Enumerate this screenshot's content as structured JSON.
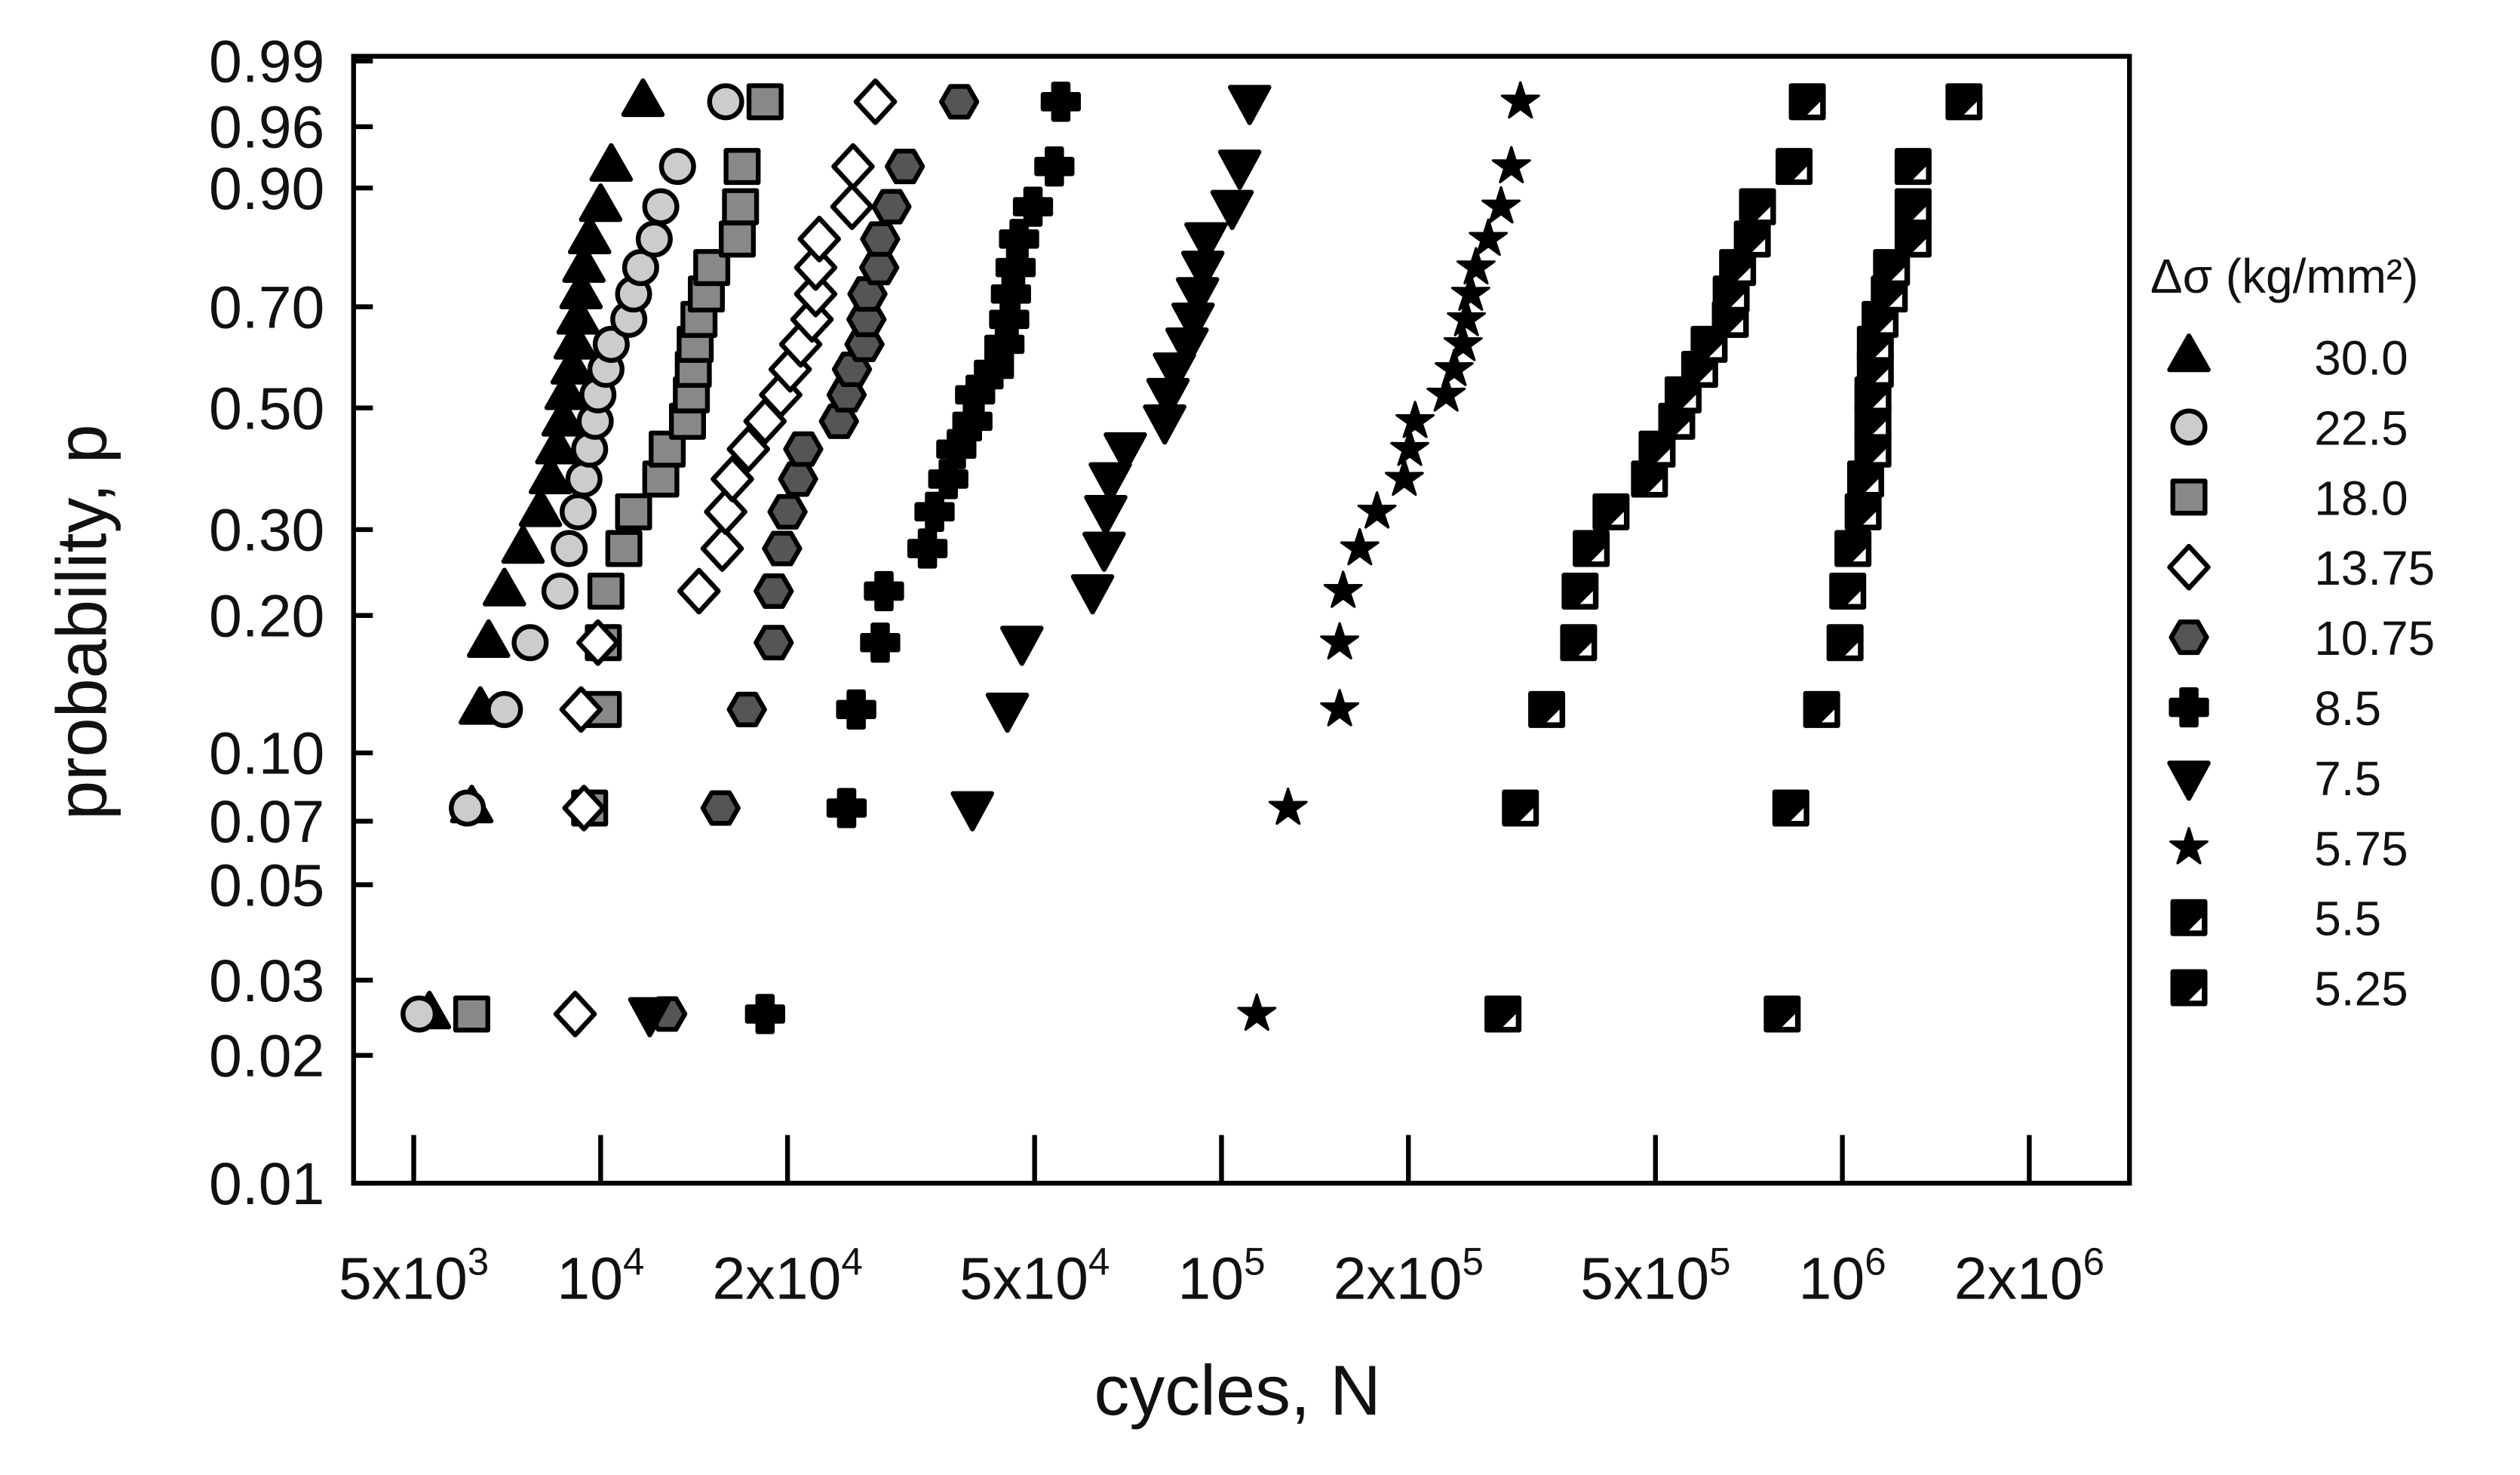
{
  "chart_data": {
    "type": "scatter",
    "x_label": "cycles, N",
    "y_label": "probability, p",
    "legend_title": "Δσ (kg/mm²)",
    "legend": "right",
    "xscale": "log",
    "yscale": "weibull",
    "xlim": [
      4000,
      2900000
    ],
    "ylim": [
      0.01,
      0.99
    ],
    "xticks": [
      {
        "value": 5000,
        "label": "5x10",
        "exponent": "3"
      },
      {
        "value": 10000,
        "label": "10",
        "exponent": "4"
      },
      {
        "value": 20000,
        "label": "2x10",
        "exponent": "4"
      },
      {
        "value": 50000,
        "label": "5x10",
        "exponent": "4"
      },
      {
        "value": 100000,
        "label": "10",
        "exponent": "5"
      },
      {
        "value": 200000,
        "label": "2x10",
        "exponent": "5"
      },
      {
        "value": 500000,
        "label": "5x10",
        "exponent": "5"
      },
      {
        "value": 1000000,
        "label": "10",
        "exponent": "6"
      },
      {
        "value": 2000000,
        "label": "2x10",
        "exponent": "6"
      }
    ],
    "yticks": [
      0.01,
      0.02,
      0.03,
      0.05,
      0.07,
      {
        "value": 0.1,
        "label": "0.10"
      },
      {
        "value": 0.2,
        "label": "0.20"
      },
      {
        "value": 0.3,
        "label": "0.30"
      },
      {
        "value": 0.5,
        "label": "0.50"
      },
      {
        "value": 0.7,
        "label": "0.70"
      },
      {
        "value": 0.9,
        "label": "0.90"
      },
      0.96,
      0.99
    ],
    "series": [
      {
        "name": "30.0",
        "marker": "triangle",
        "color": "#000000",
        "x": [
          5300,
          6200,
          6400,
          6600,
          7000,
          7500,
          8000,
          8300,
          8500,
          8700,
          8800,
          9000,
          9100,
          9200,
          9300,
          9400,
          9600,
          10000,
          10400,
          11700
        ],
        "values": [
          0.025,
          0.075,
          0.125,
          0.175,
          0.225,
          0.275,
          0.325,
          0.375,
          0.425,
          0.475,
          0.525,
          0.575,
          0.625,
          0.675,
          0.725,
          0.775,
          0.825,
          0.875,
          0.925,
          0.975
        ]
      },
      {
        "name": "22.5",
        "marker": "circle",
        "color": "#cccccc",
        "x": [
          5100,
          6100,
          7000,
          7700,
          8600,
          8900,
          9200,
          9400,
          9600,
          9800,
          9900,
          10200,
          10400,
          11100,
          11300,
          11600,
          12200,
          12500,
          13300,
          15900
        ],
        "values": [
          0.025,
          0.075,
          0.125,
          0.175,
          0.225,
          0.275,
          0.325,
          0.375,
          0.425,
          0.475,
          0.525,
          0.575,
          0.625,
          0.675,
          0.725,
          0.775,
          0.825,
          0.875,
          0.925,
          0.975
        ]
      },
      {
        "name": "18.0",
        "marker": "square",
        "color": "#888888",
        "x": [
          6200,
          9600,
          10100,
          10100,
          10200,
          10900,
          11300,
          12500,
          12800,
          13800,
          14000,
          14100,
          14200,
          14400,
          14800,
          15100,
          16600,
          16800,
          16900,
          18400
        ],
        "values": [
          0.025,
          0.075,
          0.125,
          0.175,
          0.225,
          0.275,
          0.325,
          0.375,
          0.425,
          0.475,
          0.525,
          0.575,
          0.625,
          0.675,
          0.725,
          0.775,
          0.825,
          0.875,
          0.925,
          0.975
        ]
      },
      {
        "name": "13.75",
        "marker": "diamond",
        "color": "#ffffff",
        "x": [
          9100,
          9400,
          9300,
          9900,
          14400,
          15700,
          15900,
          16300,
          17300,
          18400,
          19500,
          20200,
          21000,
          21900,
          22200,
          22200,
          22500,
          25400,
          25500,
          27700
        ],
        "values": [
          0.025,
          0.075,
          0.125,
          0.175,
          0.225,
          0.275,
          0.325,
          0.375,
          0.425,
          0.475,
          0.525,
          0.575,
          0.625,
          0.675,
          0.725,
          0.775,
          0.825,
          0.875,
          0.925,
          0.975
        ]
      },
      {
        "name": "10.75",
        "marker": "hexagon",
        "color": "#555555",
        "x": [
          12800,
          15600,
          17200,
          19000,
          19000,
          19600,
          20000,
          20800,
          21200,
          24200,
          24900,
          25400,
          26600,
          26800,
          26900,
          28100,
          28200,
          29400,
          30900,
          37800
        ],
        "values": [
          0.025,
          0.075,
          0.125,
          0.175,
          0.225,
          0.275,
          0.325,
          0.375,
          0.425,
          0.475,
          0.525,
          0.575,
          0.625,
          0.675,
          0.725,
          0.775,
          0.825,
          0.875,
          0.925,
          0.975
        ]
      },
      {
        "name": "8.5",
        "marker": "cross",
        "color": "#000000",
        "x": [
          18400,
          24900,
          25800,
          28200,
          28600,
          33600,
          34500,
          36300,
          37400,
          39700,
          40100,
          43000,
          44700,
          45500,
          45800,
          46600,
          47200,
          49700,
          53800,
          55100
        ],
        "values": [
          0.025,
          0.075,
          0.125,
          0.175,
          0.225,
          0.275,
          0.325,
          0.375,
          0.425,
          0.475,
          0.525,
          0.575,
          0.625,
          0.675,
          0.725,
          0.775,
          0.825,
          0.875,
          0.925,
          0.975
        ]
      },
      {
        "name": "7.5",
        "marker": "triangle-down",
        "color": "#000000",
        "x": [
          12000,
          39700,
          45200,
          47700,
          62000,
          64700,
          65100,
          66200,
          70000,
          81000,
          82000,
          84000,
          88000,
          90000,
          91500,
          93300,
          94400,
          104000,
          107000,
          111000
        ],
        "values": [
          0.025,
          0.075,
          0.125,
          0.175,
          0.225,
          0.275,
          0.325,
          0.375,
          0.425,
          0.475,
          0.525,
          0.575,
          0.625,
          0.675,
          0.725,
          0.775,
          0.825,
          0.875,
          0.925,
          0.975
        ]
      },
      {
        "name": "5.75",
        "marker": "star",
        "color": "#000000",
        "x": [
          114000,
          128000,
          155000,
          155000,
          157000,
          167000,
          178000,
          197000,
          201000,
          205000,
          230000,
          237000,
          245000,
          248000,
          252000,
          257000,
          269000,
          282000,
          293000,
          303000
        ],
        "values": [
          0.025,
          0.075,
          0.125,
          0.175,
          0.225,
          0.275,
          0.325,
          0.375,
          0.425,
          0.475,
          0.525,
          0.575,
          0.625,
          0.675,
          0.725,
          0.775,
          0.825,
          0.875,
          0.925,
          0.975
        ]
      },
      {
        "name": "5.5",
        "marker": "half-square",
        "color": "#000000",
        "x": [
          284000,
          303000,
          334000,
          376000,
          378000,
          394000,
          424000,
          489000,
          503000,
          541000,
          554000,
          589000,
          610000,
          660000,
          662000,
          678000,
          716000,
          730000,
          836000,
          878000
        ],
        "values": [
          0.025,
          0.075,
          0.125,
          0.175,
          0.225,
          0.275,
          0.325,
          0.375,
          0.425,
          0.475,
          0.525,
          0.575,
          0.625,
          0.675,
          0.725,
          0.775,
          0.825,
          0.875,
          0.925,
          0.975
        ]
      },
      {
        "name": "5.25",
        "marker": "half-square",
        "color": "#000000",
        "x": [
          800000,
          826000,
          926000,
          1010000,
          1020000,
          1040000,
          1080000,
          1090000,
          1120000,
          1120000,
          1120000,
          1130000,
          1130000,
          1150000,
          1190000,
          1200000,
          1300000,
          1300000,
          1300000,
          1570000
        ],
        "values": [
          0.025,
          0.075,
          0.125,
          0.175,
          0.225,
          0.275,
          0.325,
          0.375,
          0.425,
          0.475,
          0.525,
          0.575,
          0.625,
          0.675,
          0.725,
          0.775,
          0.825,
          0.875,
          0.925,
          0.975
        ]
      }
    ]
  }
}
